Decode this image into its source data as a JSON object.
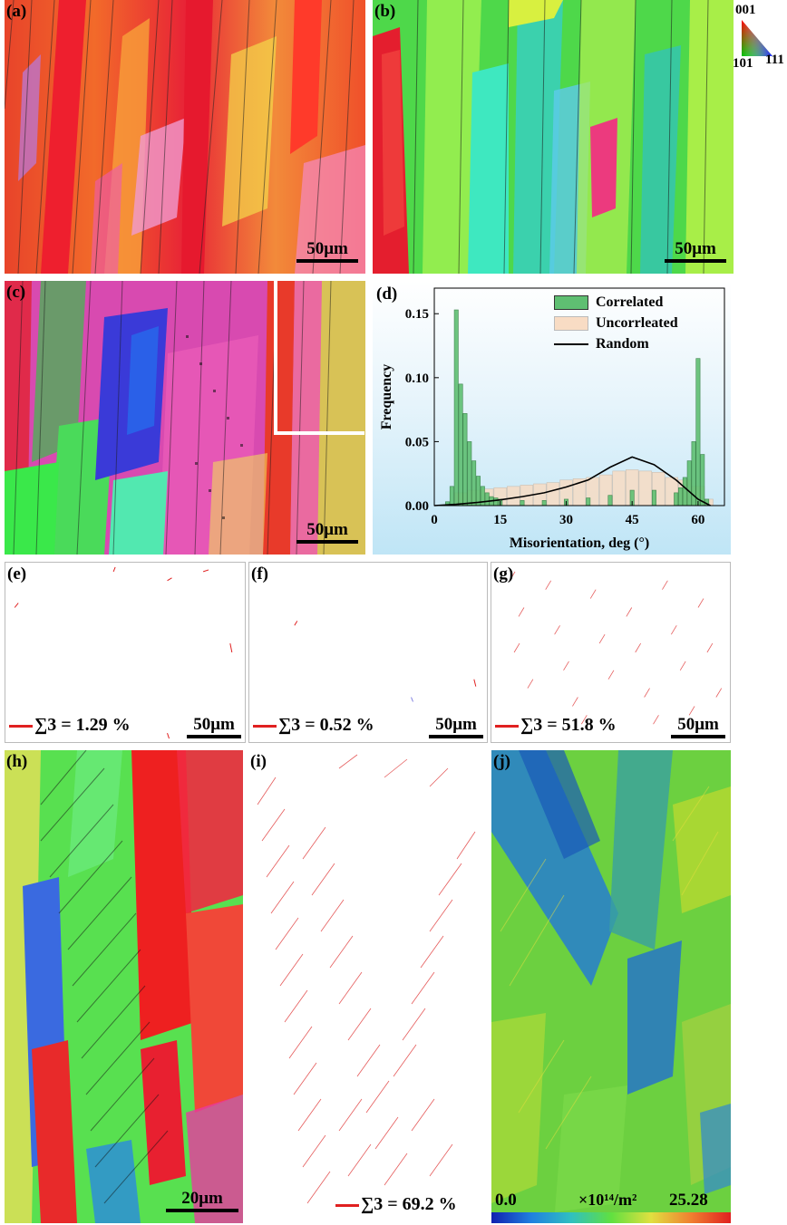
{
  "panels": {
    "a": {
      "label": "(a)",
      "scale": "50μm"
    },
    "b": {
      "label": "(b)",
      "scale": "50μm"
    },
    "c": {
      "label": "(c)",
      "scale": "50μm"
    },
    "d": {
      "label": "(d)"
    },
    "e": {
      "label": "(e)",
      "sigma": "∑3 = 1.29 %",
      "scale": "50μm"
    },
    "f": {
      "label": "(f)",
      "sigma": "∑3 = 0.52 %",
      "scale": "50μm"
    },
    "g": {
      "label": "(g)",
      "sigma": "∑3 = 51.8 %",
      "scale": "50μm"
    },
    "h": {
      "label": "(h)",
      "scale": "20μm"
    },
    "i": {
      "label": "(i)",
      "sigma": "∑3 = 69.2 %"
    },
    "j": {
      "label": "(j)",
      "cb_min": "0.0",
      "cb_unit": "×10¹⁴/m²",
      "cb_max": "25.28"
    }
  },
  "ipf_key": {
    "top": "001",
    "left": "101",
    "right": "111"
  },
  "colors": {
    "sigma_line": "#e02020",
    "correlated": "#5fbf72",
    "uncorrelated": "#f8dcc4",
    "random": "#000000"
  },
  "chart_data": {
    "type": "bar",
    "xlabel": "Misorientation, deg (°)",
    "ylabel": "Frequency",
    "xlim": [
      0,
      66
    ],
    "ylim": [
      0,
      0.17
    ],
    "xticks": [
      0,
      15,
      30,
      45,
      60
    ],
    "yticks": [
      0.0,
      0.05,
      0.1,
      0.15
    ],
    "ytick_labels": [
      "0.00",
      "0.05",
      "0.10",
      "0.15"
    ],
    "legend_position": "top-right",
    "series": [
      {
        "name": "Correlated",
        "kind": "bar",
        "x": [
          3,
          4,
          5,
          6,
          7,
          8,
          9,
          10,
          11,
          12,
          13,
          14,
          15,
          20,
          25,
          30,
          35,
          40,
          45,
          50,
          55,
          56,
          57,
          58,
          59,
          60,
          61,
          62
        ],
        "values": [
          0.003,
          0.015,
          0.153,
          0.095,
          0.072,
          0.05,
          0.035,
          0.023,
          0.015,
          0.01,
          0.007,
          0.006,
          0.005,
          0.004,
          0.004,
          0.005,
          0.006,
          0.008,
          0.012,
          0.012,
          0.01,
          0.014,
          0.022,
          0.035,
          0.05,
          0.115,
          0.04,
          0.005
        ]
      },
      {
        "name": "Uncorrleated",
        "kind": "bar",
        "x": [
          6,
          9,
          12,
          15,
          18,
          21,
          24,
          27,
          30,
          33,
          36,
          39,
          42,
          45,
          48,
          51,
          54,
          57,
          60,
          62
        ],
        "values": [
          0.01,
          0.012,
          0.013,
          0.014,
          0.015,
          0.016,
          0.017,
          0.018,
          0.02,
          0.021,
          0.022,
          0.024,
          0.027,
          0.028,
          0.027,
          0.026,
          0.022,
          0.02,
          0.015,
          0.005
        ]
      },
      {
        "name": "Random",
        "kind": "line",
        "x": [
          0,
          5,
          10,
          15,
          20,
          25,
          30,
          35,
          40,
          45,
          50,
          55,
          60,
          62.8
        ],
        "values": [
          0,
          0.001,
          0.0025,
          0.0045,
          0.007,
          0.01,
          0.0145,
          0.02,
          0.03,
          0.038,
          0.032,
          0.02,
          0.005,
          0
        ]
      }
    ]
  }
}
